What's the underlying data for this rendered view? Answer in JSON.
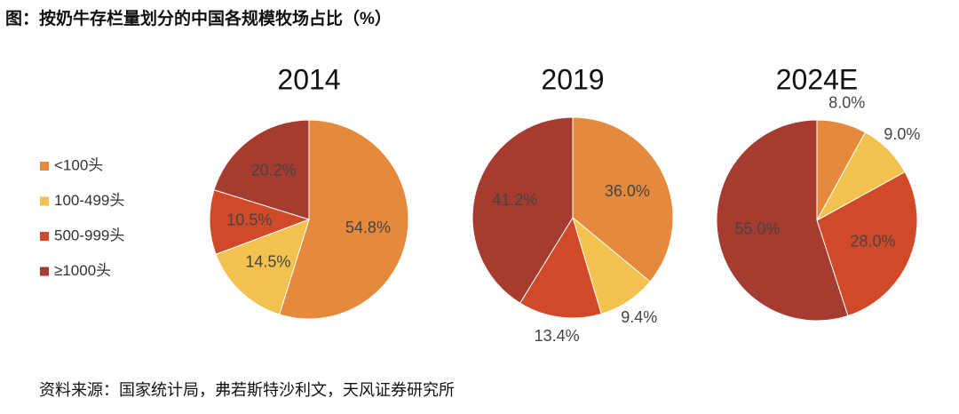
{
  "title": "图：按奶牛存栏量划分的中国各规模牧场占比（%）",
  "source": "资料来源：国家统计局，弗若斯特沙利文，天风证券研究所",
  "chart_data": [
    {
      "type": "pie",
      "title": "2014",
      "categories": [
        "<100头",
        "100-499头",
        "500-999头",
        "≥1000头"
      ],
      "values": [
        54.8,
        14.5,
        10.5,
        20.2
      ],
      "value_labels": [
        "54.8%",
        "14.5%",
        "10.5%",
        "20.2%"
      ],
      "colors": [
        "#e58a3c",
        "#f2c14e",
        "#d04a2a",
        "#a63c2f"
      ]
    },
    {
      "type": "pie",
      "title": "2019",
      "categories": [
        "<100头",
        "100-499头",
        "500-999头",
        "≥1000头"
      ],
      "values": [
        36.0,
        9.4,
        13.4,
        41.2
      ],
      "value_labels": [
        "36.0%",
        "9.4%",
        "13.4%",
        "41.2%"
      ],
      "colors": [
        "#e58a3c",
        "#f2c14e",
        "#d04a2a",
        "#a63c2f"
      ]
    },
    {
      "type": "pie",
      "title": "2024E",
      "categories": [
        "<100头",
        "100-499头",
        "500-999头",
        "≥1000头"
      ],
      "values": [
        8.0,
        9.0,
        28.0,
        55.0
      ],
      "value_labels": [
        "8.0%",
        "9.0%",
        "28.0%",
        "55.0%"
      ],
      "colors": [
        "#e58a3c",
        "#f2c14e",
        "#d04a2a",
        "#a63c2f"
      ]
    }
  ]
}
